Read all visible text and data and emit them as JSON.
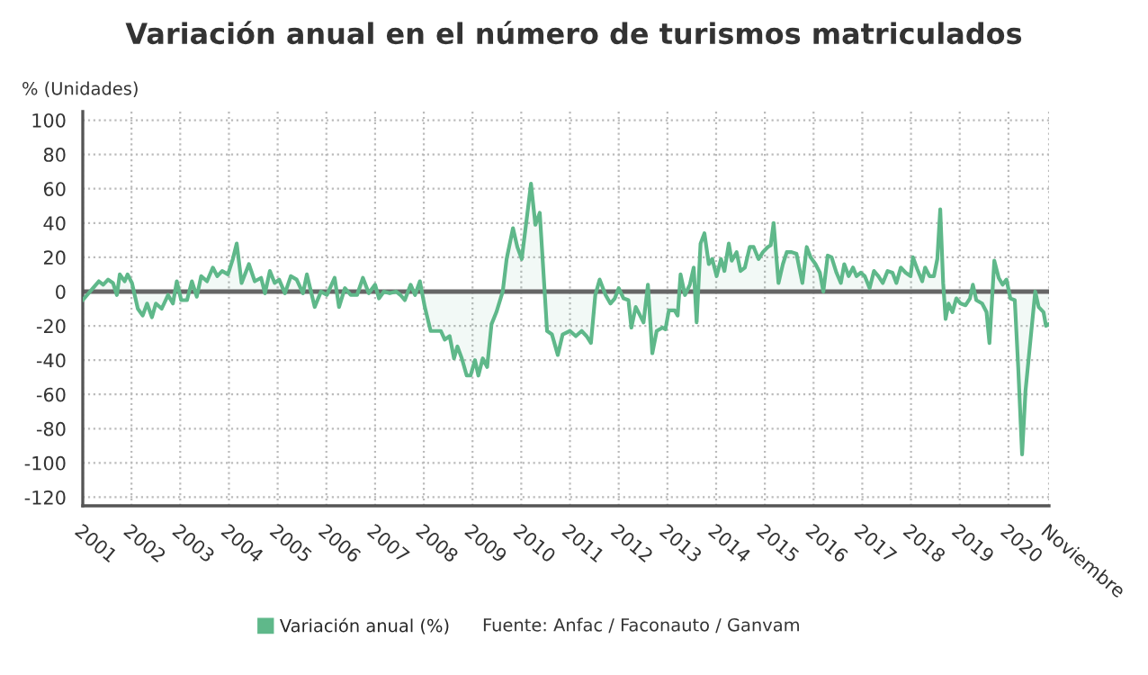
{
  "chart_data": {
    "type": "area",
    "title": "Variación anual en el número de turismos matriculados",
    "ylabel": "% (Unidades)",
    "annotations": [
      "Fuente: Anfac / Faconauto / Ganvam"
    ],
    "x": [
      2001.0,
      2001.09,
      2001.21,
      2001.33,
      2001.42,
      2001.52,
      2001.62,
      2001.7,
      2001.76,
      2001.86,
      2001.92,
      2002.01,
      2002.13,
      2002.23,
      2002.32,
      2002.42,
      2002.5,
      2002.62,
      2002.75,
      2002.85,
      2002.93,
      2003.02,
      2003.14,
      2003.24,
      2003.34,
      2003.43,
      2003.55,
      2003.67,
      2003.76,
      2003.86,
      2003.98,
      2004.08,
      2004.16,
      2004.26,
      2004.41,
      2004.53,
      2004.66,
      2004.74,
      2004.84,
      2004.94,
      2005.03,
      2005.15,
      2005.27,
      2005.39,
      2005.52,
      2005.6,
      2005.76,
      2005.89,
      2006.01,
      2006.17,
      2006.26,
      2006.38,
      2006.5,
      2006.63,
      2006.75,
      2006.87,
      2007.0,
      2007.08,
      2007.18,
      2007.3,
      2007.43,
      2007.52,
      2007.61,
      2007.73,
      2007.82,
      2007.92,
      2008.02,
      2008.14,
      2008.35,
      2008.43,
      2008.53,
      2008.62,
      2008.69,
      2008.78,
      2008.88,
      2008.96,
      2009.05,
      2009.12,
      2009.21,
      2009.3,
      2009.39,
      2009.49,
      2009.62,
      2009.7,
      2009.83,
      2009.92,
      2010.01,
      2010.11,
      2010.2,
      2010.29,
      2010.38,
      2010.48,
      2010.53,
      2010.63,
      2010.75,
      2010.85,
      2011.0,
      2011.12,
      2011.24,
      2011.34,
      2011.43,
      2011.52,
      2011.61,
      2011.73,
      2011.83,
      2011.92,
      2012.0,
      2012.1,
      2012.2,
      2012.26,
      2012.35,
      2012.44,
      2012.51,
      2012.6,
      2012.69,
      2012.78,
      2012.9,
      2012.96,
      2013.03,
      2013.15,
      2013.21,
      2013.27,
      2013.36,
      2013.46,
      2013.54,
      2013.6,
      2013.68,
      2013.76,
      2013.85,
      2013.92,
      2014.01,
      2014.1,
      2014.17,
      2014.26,
      2014.32,
      2014.42,
      2014.5,
      2014.59,
      2014.69,
      2014.77,
      2014.87,
      2014.96,
      2015.06,
      2015.12,
      2015.18,
      2015.28,
      2015.37,
      2015.45,
      2015.55,
      2015.65,
      2015.77,
      2015.86,
      2015.94,
      2016.04,
      2016.13,
      2016.2,
      2016.29,
      2016.37,
      2016.47,
      2016.56,
      2016.63,
      2016.72,
      2016.81,
      2016.88,
      2016.97,
      2017.05,
      2017.15,
      2017.24,
      2017.33,
      2017.42,
      2017.52,
      2017.62,
      2017.7,
      2017.79,
      2017.89,
      2017.99,
      2018.04,
      2018.13,
      2018.23,
      2018.29,
      2018.38,
      2018.47,
      2018.54,
      2018.6,
      2018.66,
      2018.71,
      2018.77,
      2018.85,
      2018.93,
      2019.02,
      2019.12,
      2019.21,
      2019.27,
      2019.34,
      2019.46,
      2019.55,
      2019.61,
      2019.71,
      2019.8,
      2019.88,
      2019.96,
      2020.04,
      2020.13,
      2020.2,
      2020.28,
      2020.35,
      2020.47,
      2020.55,
      2020.62,
      2020.72,
      2020.77,
      2020.83
    ],
    "series": [
      {
        "name": "Variación anual (%)",
        "color": "#5fb88a",
        "values": [
          -5,
          -2,
          2,
          6,
          4,
          7,
          5,
          -2,
          10,
          6,
          10,
          5,
          -10,
          -14,
          -7,
          -15,
          -7,
          -10,
          -2,
          -7,
          6,
          -5,
          -5,
          6,
          -3,
          9,
          6,
          14,
          9,
          12,
          10,
          19,
          28,
          5,
          16,
          6,
          8,
          -1,
          12,
          5,
          7,
          -1,
          9,
          7,
          -1,
          10,
          -9,
          0,
          -2,
          8,
          -9,
          2,
          -2,
          -2,
          8,
          -1,
          4,
          -4,
          0,
          -1,
          0,
          -2,
          -5,
          4,
          -2,
          6,
          -9,
          -23,
          -23,
          -28,
          -26,
          -39,
          -32,
          -39,
          -49,
          -49,
          -40,
          -49,
          -39,
          -44,
          -19,
          -12,
          0,
          19,
          37,
          26,
          19,
          42,
          63,
          39,
          46,
          0,
          -23,
          -25,
          -37,
          -25,
          -23,
          -26,
          -23,
          -26,
          -30,
          -2,
          7,
          -2,
          -7,
          -4,
          2,
          -4,
          -5,
          -21,
          -9,
          -14,
          -18,
          4,
          -36,
          -23,
          -21,
          -22,
          -11,
          -11,
          -14,
          10,
          -2,
          4,
          14,
          -18,
          28,
          34,
          16,
          19,
          9,
          19,
          12,
          28,
          18,
          23,
          12,
          14,
          26,
          26,
          19,
          23,
          26,
          27,
          40,
          5,
          16,
          23,
          23,
          22,
          5,
          26,
          20,
          16,
          11,
          0,
          21,
          20,
          11,
          5,
          16,
          9,
          14,
          9,
          11,
          9,
          2,
          12,
          9,
          5,
          12,
          11,
          5,
          14,
          11,
          9,
          20,
          13,
          6,
          14,
          9,
          9,
          19,
          48,
          5,
          -16,
          -7,
          -12,
          -4,
          -7,
          -8,
          -4,
          4,
          -5,
          -7,
          -12,
          -30,
          18,
          8,
          4,
          7,
          -4,
          -5,
          -44,
          -95,
          -58,
          -23,
          0,
          -9,
          -12,
          -20,
          -19
        ]
      }
    ],
    "xlim": [
      2001,
      2020.833
    ],
    "xticks": [
      {
        "value": 2001,
        "label": "2001"
      },
      {
        "value": 2002,
        "label": "2002"
      },
      {
        "value": 2003,
        "label": "2003"
      },
      {
        "value": 2004,
        "label": "2004"
      },
      {
        "value": 2005,
        "label": "2005"
      },
      {
        "value": 2006,
        "label": "2006"
      },
      {
        "value": 2007,
        "label": "2007"
      },
      {
        "value": 2008,
        "label": "2008"
      },
      {
        "value": 2009,
        "label": "2009"
      },
      {
        "value": 2010,
        "label": "2010"
      },
      {
        "value": 2011,
        "label": "2011"
      },
      {
        "value": 2012,
        "label": "2012"
      },
      {
        "value": 2013,
        "label": "2013"
      },
      {
        "value": 2014,
        "label": "2014"
      },
      {
        "value": 2015,
        "label": "2015"
      },
      {
        "value": 2016,
        "label": "2016"
      },
      {
        "value": 2017,
        "label": "2017"
      },
      {
        "value": 2018,
        "label": "2018"
      },
      {
        "value": 2019,
        "label": "2019"
      },
      {
        "value": 2020,
        "label": "2020"
      },
      {
        "value": 2020.833,
        "label": "Noviembre"
      }
    ],
    "ylim": [
      -125,
      105
    ],
    "yticks": [
      -120,
      -100,
      -80,
      -60,
      -40,
      -20,
      0,
      20,
      40,
      60,
      80,
      100
    ],
    "ref_lines": [
      {
        "axis": "y",
        "value": 0,
        "color": "#666666"
      }
    ],
    "grid": true,
    "legend": "bottom",
    "marker": "none",
    "line_style": "solid"
  }
}
